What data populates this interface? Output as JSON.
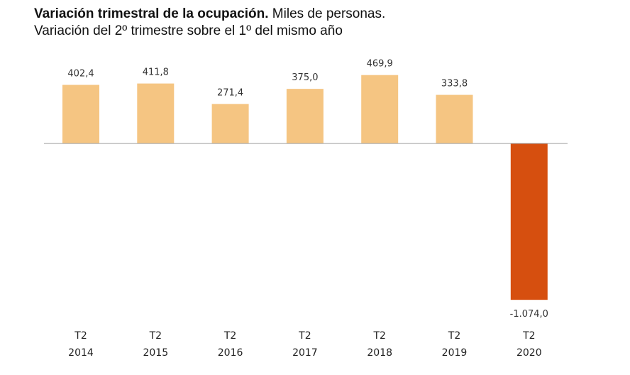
{
  "title": {
    "bold": "Variación trimestral de la ocupación.",
    "normal": "Miles de personas.",
    "subtitle": "Variación del 2º trimestre sobre el 1º del mismo año"
  },
  "colors": {
    "positive_bar": "#F5C582",
    "negative_bar": "#D64F0F",
    "baseline": "#999999"
  },
  "chart_data": {
    "type": "bar",
    "categories": [
      [
        "T2",
        "2014"
      ],
      [
        "T2",
        "2015"
      ],
      [
        "T2",
        "2016"
      ],
      [
        "T2",
        "2017"
      ],
      [
        "T2",
        "2018"
      ],
      [
        "T2",
        "2019"
      ],
      [
        "T2",
        "2020"
      ]
    ],
    "values": [
      402.4,
      411.8,
      271.4,
      375.0,
      469.9,
      333.8,
      -1074.0
    ],
    "data_labels": [
      "402,4",
      "411,8",
      "271,4",
      "375,0",
      "469,9",
      "333,8",
      "-1.074,0"
    ],
    "title": "Variación trimestral de la ocupación. Miles de personas.",
    "subtitle": "Variación del 2º trimestre sobre el 1º del mismo año",
    "grid": false,
    "legend": "none"
  }
}
